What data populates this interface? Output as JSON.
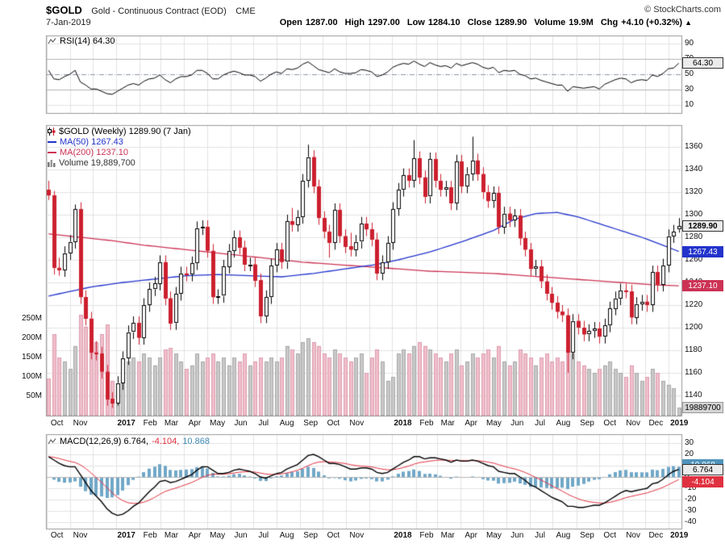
{
  "header": {
    "symbol": "$GOLD",
    "description": "Gold - Continuous Contract (EOD)",
    "exchange": "CME",
    "copyright": "© StockCharts.com",
    "date": "7-Jan-2019",
    "quote": [
      {
        "label": "Open",
        "value": "1287.00"
      },
      {
        "label": "High",
        "value": "1297.00"
      },
      {
        "label": "Low",
        "value": "1284.10"
      },
      {
        "label": "Close",
        "value": "1289.90"
      },
      {
        "label": "Volume",
        "value": "19.9M"
      },
      {
        "label": "Chg",
        "value": "+4.10 (+0.32%)"
      }
    ],
    "change_direction": "up"
  },
  "rsi_panel": {
    "legend": "RSI(14) 64.30",
    "yticks": [
      90,
      70,
      50,
      30,
      10
    ],
    "value_box": "64.30"
  },
  "main_panel": {
    "legend_price": "$GOLD (Weekly) 1289.90 (7 Jan)",
    "legend_ma50": "MA(50) 1267.43",
    "legend_ma200": "MA(200) 1237.10",
    "legend_volume": "Volume 19,889,700",
    "yticks": [
      1360,
      1340,
      1320,
      1300,
      1280,
      1260,
      1240,
      1220,
      1200,
      1180,
      1160,
      1140
    ],
    "volume_ticks": [
      {
        "label": "250M",
        "value": 250
      },
      {
        "label": "200M",
        "value": 200
      },
      {
        "label": "150M",
        "value": 150
      },
      {
        "label": "100M",
        "value": 100
      },
      {
        "label": "50M",
        "value": 50
      }
    ],
    "boxes": {
      "price": "1289.90",
      "ma50": "1267.43",
      "ma200": "1237.10",
      "volume": "19889700"
    }
  },
  "macd_panel": {
    "legend_main": "MACD(12,26,9) 6.764,",
    "legend_signal": "-4.104,",
    "legend_hist": "10.868",
    "yticks": [
      30,
      20,
      10,
      0,
      -10,
      -20,
      -30,
      -40
    ],
    "boxes": {
      "macd": "6.764",
      "signal": "-4.104",
      "hist": "10.868"
    }
  },
  "x_axis": {
    "months": [
      {
        "label": "Oct",
        "week": 0.1
      },
      {
        "label": "Nov",
        "week": 4.5
      },
      {
        "label": "2017",
        "week": 13.2,
        "bold": true
      },
      {
        "label": "Feb",
        "week": 17.7
      },
      {
        "label": "Mar",
        "week": 21.7
      },
      {
        "label": "Apr",
        "week": 26.1
      },
      {
        "label": "May",
        "week": 30.4
      },
      {
        "label": "Jun",
        "week": 34.8
      },
      {
        "label": "Jul",
        "week": 39.1
      },
      {
        "label": "Aug",
        "week": 43.5
      },
      {
        "label": "Sep",
        "week": 48.0
      },
      {
        "label": "Oct",
        "week": 52.3
      },
      {
        "label": "Nov",
        "week": 56.7
      },
      {
        "label": "2018",
        "week": 65.4,
        "bold": true
      },
      {
        "label": "Feb",
        "week": 69.9
      },
      {
        "label": "Mar",
        "week": 73.9
      },
      {
        "label": "Apr",
        "week": 78.3
      },
      {
        "label": "May",
        "week": 82.6
      },
      {
        "label": "Jun",
        "week": 87.0
      },
      {
        "label": "Jul",
        "week": 91.3
      },
      {
        "label": "Aug",
        "week": 95.7
      },
      {
        "label": "Sep",
        "week": 100.2
      },
      {
        "label": "Oct",
        "week": 104.5
      },
      {
        "label": "Nov",
        "week": 108.9
      },
      {
        "label": "Dec",
        "week": 113.2
      },
      {
        "label": "2019",
        "week": 117.6,
        "bold": true
      }
    ],
    "extra_gridline_weeks": [
      8.8,
      61.0
    ]
  },
  "colors": {
    "candle_up_fill": "#ffffff",
    "candle_up_stroke": "#000000",
    "candle_down": "#cc1f2e",
    "ma50": "#2233cc",
    "ma200": "#cc3355",
    "volume_up": "#c9c9c9",
    "volume_up_stroke": "#a8a8a8",
    "volume_down": "#f0bfcc",
    "volume_down_stroke": "#dd9cae",
    "rsi_line": "#000000",
    "macd_line": "#000000",
    "signal_line": "#e03140",
    "hist_fill": "#70a7c7",
    "hist_box": "#4f93bb",
    "grid": "#e2e2e2",
    "grid_dark": "#b5b5b5",
    "panel_border": "#999999",
    "text": "#111111"
  },
  "chart_data": {
    "type": "candlestick",
    "title": "$GOLD (Weekly) with RSI(14), MA(50), MA(200), Volume, MACD(12,26,9)",
    "timeframe": "weekly",
    "x_range": "Oct 2016 - Jan 2019",
    "price_ylim": [
      1140,
      1360
    ],
    "rsi_ylim": [
      0,
      100
    ],
    "macd_ylim": [
      -45,
      35
    ],
    "candles": [
      [
        1322,
        1330,
        1313,
        1317
      ],
      [
        1317,
        1321,
        1247,
        1253
      ],
      [
        1253,
        1262,
        1246,
        1251
      ],
      [
        1251,
        1272,
        1245,
        1266
      ],
      [
        1266,
        1282,
        1260,
        1276
      ],
      [
        1276,
        1309,
        1270,
        1305
      ],
      [
        1305,
        1311,
        1221,
        1227
      ],
      [
        1227,
        1233,
        1202,
        1208
      ],
      [
        1208,
        1214,
        1172,
        1178
      ],
      [
        1178,
        1188,
        1171,
        1177
      ],
      [
        1177,
        1183,
        1155,
        1161
      ],
      [
        1161,
        1167,
        1131,
        1137
      ],
      [
        1137,
        1143,
        1129,
        1133
      ],
      [
        1133,
        1157,
        1131,
        1151
      ],
      [
        1151,
        1179,
        1145,
        1173
      ],
      [
        1173,
        1202,
        1167,
        1196
      ],
      [
        1196,
        1210,
        1190,
        1204
      ],
      [
        1204,
        1210,
        1185,
        1191
      ],
      [
        1191,
        1226,
        1185,
        1220
      ],
      [
        1220,
        1240,
        1214,
        1234
      ],
      [
        1234,
        1245,
        1228,
        1239
      ],
      [
        1239,
        1264,
        1233,
        1258
      ],
      [
        1258,
        1264,
        1220,
        1226
      ],
      [
        1226,
        1232,
        1198,
        1204
      ],
      [
        1204,
        1236,
        1198,
        1230
      ],
      [
        1230,
        1254,
        1224,
        1248
      ],
      [
        1248,
        1254,
        1241,
        1247
      ],
      [
        1247,
        1263,
        1241,
        1257
      ],
      [
        1257,
        1294,
        1251,
        1288
      ],
      [
        1288,
        1295,
        1282,
        1289
      ],
      [
        1289,
        1295,
        1262,
        1268
      ],
      [
        1268,
        1274,
        1221,
        1227
      ],
      [
        1227,
        1234,
        1221,
        1228
      ],
      [
        1228,
        1260,
        1222,
        1254
      ],
      [
        1254,
        1274,
        1248,
        1268
      ],
      [
        1268,
        1286,
        1262,
        1280
      ],
      [
        1280,
        1286,
        1265,
        1271
      ],
      [
        1271,
        1277,
        1250,
        1256
      ],
      [
        1256,
        1262,
        1250,
        1256
      ],
      [
        1256,
        1262,
        1236,
        1242
      ],
      [
        1242,
        1248,
        1204,
        1210
      ],
      [
        1210,
        1233,
        1204,
        1227
      ],
      [
        1227,
        1261,
        1221,
        1255
      ],
      [
        1255,
        1275,
        1249,
        1269
      ],
      [
        1269,
        1275,
        1252,
        1258
      ],
      [
        1258,
        1300,
        1252,
        1294
      ],
      [
        1294,
        1306,
        1285,
        1291
      ],
      [
        1291,
        1304,
        1285,
        1298
      ],
      [
        1298,
        1336,
        1292,
        1330
      ],
      [
        1330,
        1362,
        1324,
        1351
      ],
      [
        1351,
        1357,
        1319,
        1325
      ],
      [
        1325,
        1331,
        1291,
        1297
      ],
      [
        1297,
        1303,
        1279,
        1285
      ],
      [
        1285,
        1291,
        1262,
        1275
      ],
      [
        1275,
        1310,
        1269,
        1304
      ],
      [
        1304,
        1310,
        1275,
        1281
      ],
      [
        1281,
        1287,
        1266,
        1272
      ],
      [
        1272,
        1284,
        1263,
        1269
      ],
      [
        1269,
        1282,
        1263,
        1276
      ],
      [
        1276,
        1298,
        1270,
        1292
      ],
      [
        1292,
        1298,
        1281,
        1287
      ],
      [
        1287,
        1293,
        1272,
        1278
      ],
      [
        1278,
        1284,
        1242,
        1248
      ],
      [
        1248,
        1264,
        1242,
        1258
      ],
      [
        1258,
        1281,
        1252,
        1275
      ],
      [
        1275,
        1311,
        1269,
        1305
      ],
      [
        1305,
        1328,
        1299,
        1322
      ],
      [
        1322,
        1341,
        1316,
        1335
      ],
      [
        1335,
        1341,
        1324,
        1330
      ],
      [
        1330,
        1366,
        1324,
        1350
      ],
      [
        1350,
        1356,
        1327,
        1333
      ],
      [
        1333,
        1339,
        1310,
        1316
      ],
      [
        1316,
        1355,
        1310,
        1349
      ],
      [
        1349,
        1355,
        1324,
        1330
      ],
      [
        1330,
        1336,
        1316,
        1322
      ],
      [
        1322,
        1330,
        1316,
        1324
      ],
      [
        1324,
        1330,
        1304,
        1310
      ],
      [
        1310,
        1353,
        1304,
        1347
      ],
      [
        1347,
        1353,
        1319,
        1325
      ],
      [
        1325,
        1342,
        1319,
        1336
      ],
      [
        1336,
        1369,
        1330,
        1348
      ],
      [
        1348,
        1354,
        1330,
        1336
      ],
      [
        1336,
        1342,
        1314,
        1320
      ],
      [
        1320,
        1326,
        1306,
        1312
      ],
      [
        1312,
        1325,
        1306,
        1319
      ],
      [
        1319,
        1325,
        1283,
        1289
      ],
      [
        1289,
        1307,
        1283,
        1301
      ],
      [
        1301,
        1307,
        1289,
        1295
      ],
      [
        1295,
        1305,
        1289,
        1299
      ],
      [
        1299,
        1305,
        1273,
        1279
      ],
      [
        1279,
        1285,
        1263,
        1269
      ],
      [
        1269,
        1275,
        1246,
        1252
      ],
      [
        1252,
        1260,
        1246,
        1254
      ],
      [
        1254,
        1260,
        1235,
        1241
      ],
      [
        1241,
        1247,
        1224,
        1230
      ],
      [
        1230,
        1236,
        1216,
        1222
      ],
      [
        1222,
        1228,
        1208,
        1214
      ],
      [
        1214,
        1220,
        1205,
        1211
      ],
      [
        1211,
        1217,
        1160,
        1178
      ],
      [
        1178,
        1212,
        1172,
        1206
      ],
      [
        1206,
        1212,
        1194,
        1200
      ],
      [
        1200,
        1206,
        1188,
        1194
      ],
      [
        1194,
        1203,
        1188,
        1197
      ],
      [
        1197,
        1205,
        1191,
        1199
      ],
      [
        1199,
        1205,
        1186,
        1192
      ],
      [
        1192,
        1208,
        1186,
        1202
      ],
      [
        1202,
        1223,
        1196,
        1217
      ],
      [
        1217,
        1232,
        1211,
        1226
      ],
      [
        1226,
        1239,
        1220,
        1233
      ],
      [
        1233,
        1239,
        1226,
        1232
      ],
      [
        1232,
        1238,
        1203,
        1209
      ],
      [
        1209,
        1227,
        1203,
        1221
      ],
      [
        1221,
        1229,
        1215,
        1223
      ],
      [
        1223,
        1229,
        1214,
        1220
      ],
      [
        1220,
        1255,
        1214,
        1249
      ],
      [
        1249,
        1255,
        1232,
        1238
      ],
      [
        1238,
        1261,
        1232,
        1255
      ],
      [
        1255,
        1287,
        1249,
        1281
      ],
      [
        1281,
        1291,
        1275,
        1285
      ],
      [
        1287,
        1297,
        1284.1,
        1289.9
      ]
    ],
    "volume_millions": [
      95,
      210,
      150,
      140,
      120,
      180,
      260,
      230,
      200,
      190,
      210,
      235,
      90,
      80,
      130,
      140,
      150,
      140,
      160,
      150,
      130,
      150,
      170,
      175,
      160,
      140,
      120,
      130,
      160,
      140,
      150,
      160,
      140,
      150,
      130,
      150,
      140,
      160,
      130,
      140,
      150,
      140,
      150,
      140,
      150,
      180,
      170,
      160,
      190,
      200,
      190,
      180,
      160,
      150,
      170,
      160,
      150,
      140,
      150,
      160,
      110,
      150,
      170,
      140,
      90,
      100,
      160,
      170,
      160,
      180,
      190,
      180,
      170,
      160,
      150,
      140,
      160,
      170,
      130,
      140,
      160,
      150,
      160,
      170,
      150,
      180,
      140,
      130,
      140,
      170,
      160,
      150,
      130,
      150,
      160,
      140,
      150,
      140,
      190,
      160,
      140,
      130,
      120,
      110,
      120,
      130,
      140,
      120,
      110,
      100,
      130,
      110,
      90,
      100,
      120,
      110,
      90,
      80,
      70,
      20
    ],
    "rsi14": [
      55,
      44,
      43,
      47,
      50,
      55,
      40,
      36,
      31,
      31,
      28,
      25,
      24,
      28,
      32,
      36,
      38,
      36,
      41,
      44,
      45,
      49,
      43,
      39,
      44,
      47,
      47,
      49,
      55,
      55,
      51,
      44,
      44,
      49,
      52,
      54,
      52,
      49,
      49,
      47,
      41,
      45,
      50,
      53,
      51,
      57,
      56,
      58,
      63,
      66,
      61,
      56,
      54,
      52,
      57,
      53,
      51,
      51,
      52,
      56,
      55,
      53,
      47,
      49,
      53,
      59,
      62,
      64,
      63,
      67,
      63,
      60,
      65,
      62,
      60,
      61,
      58,
      64,
      61,
      63,
      65,
      63,
      59,
      57,
      59,
      52,
      55,
      54,
      55,
      50,
      48,
      44,
      45,
      42,
      40,
      38,
      36,
      36,
      28,
      34,
      33,
      32,
      33,
      34,
      31,
      37,
      40,
      43,
      45,
      44,
      39,
      42,
      43,
      42,
      49,
      47,
      51,
      57,
      58,
      64.3
    ],
    "macd": [
      18,
      15,
      12,
      10,
      9,
      9,
      2,
      -5,
      -12,
      -17,
      -22,
      -28,
      -32,
      -34,
      -33,
      -30,
      -26,
      -23,
      -18,
      -13,
      -9,
      -4,
      -3,
      -5,
      -4,
      -2,
      0,
      2,
      6,
      9,
      9,
      6,
      3,
      3,
      4,
      6,
      7,
      6,
      5,
      3,
      0,
      -1,
      1,
      3,
      4,
      7,
      9,
      11,
      15,
      19,
      20,
      18,
      15,
      12,
      12,
      11,
      9,
      7,
      7,
      8,
      8,
      7,
      4,
      3,
      4,
      7,
      10,
      13,
      15,
      18,
      18,
      16,
      17,
      17,
      16,
      15,
      13,
      15,
      14,
      14,
      15,
      14,
      12,
      10,
      9,
      5,
      4,
      3,
      3,
      0,
      -3,
      -7,
      -9,
      -12,
      -15,
      -18,
      -20,
      -22,
      -26,
      -26,
      -27,
      -27,
      -26,
      -25,
      -25,
      -23,
      -20,
      -17,
      -14,
      -12,
      -13,
      -12,
      -11,
      -10,
      -6,
      -5,
      -2,
      2,
      5,
      6.764
    ],
    "ma50": [
      [
        0,
        1228
      ],
      [
        8,
        1236
      ],
      [
        14,
        1240
      ],
      [
        20,
        1243
      ],
      [
        26,
        1246
      ],
      [
        32,
        1247
      ],
      [
        38,
        1246
      ],
      [
        44,
        1245
      ],
      [
        50,
        1248
      ],
      [
        56,
        1252
      ],
      [
        62,
        1256
      ],
      [
        66,
        1260
      ],
      [
        72,
        1267
      ],
      [
        78,
        1276
      ],
      [
        84,
        1286
      ],
      [
        88,
        1296
      ],
      [
        92,
        1301
      ],
      [
        96,
        1302
      ],
      [
        100,
        1298
      ],
      [
        104,
        1292
      ],
      [
        108,
        1286
      ],
      [
        112,
        1280
      ],
      [
        116,
        1273
      ],
      [
        119,
        1267.43
      ]
    ],
    "ma200": [
      [
        0,
        1283
      ],
      [
        6,
        1280
      ],
      [
        12,
        1277
      ],
      [
        18,
        1273
      ],
      [
        24,
        1270
      ],
      [
        30,
        1267
      ],
      [
        36,
        1264
      ],
      [
        42,
        1261
      ],
      [
        48,
        1258
      ],
      [
        54,
        1256
      ],
      [
        60,
        1254
      ],
      [
        66,
        1252
      ],
      [
        72,
        1250
      ],
      [
        78,
        1249
      ],
      [
        84,
        1248
      ],
      [
        90,
        1246
      ],
      [
        96,
        1244
      ],
      [
        102,
        1242
      ],
      [
        108,
        1240
      ],
      [
        114,
        1238
      ],
      [
        119,
        1237.1
      ]
    ]
  }
}
